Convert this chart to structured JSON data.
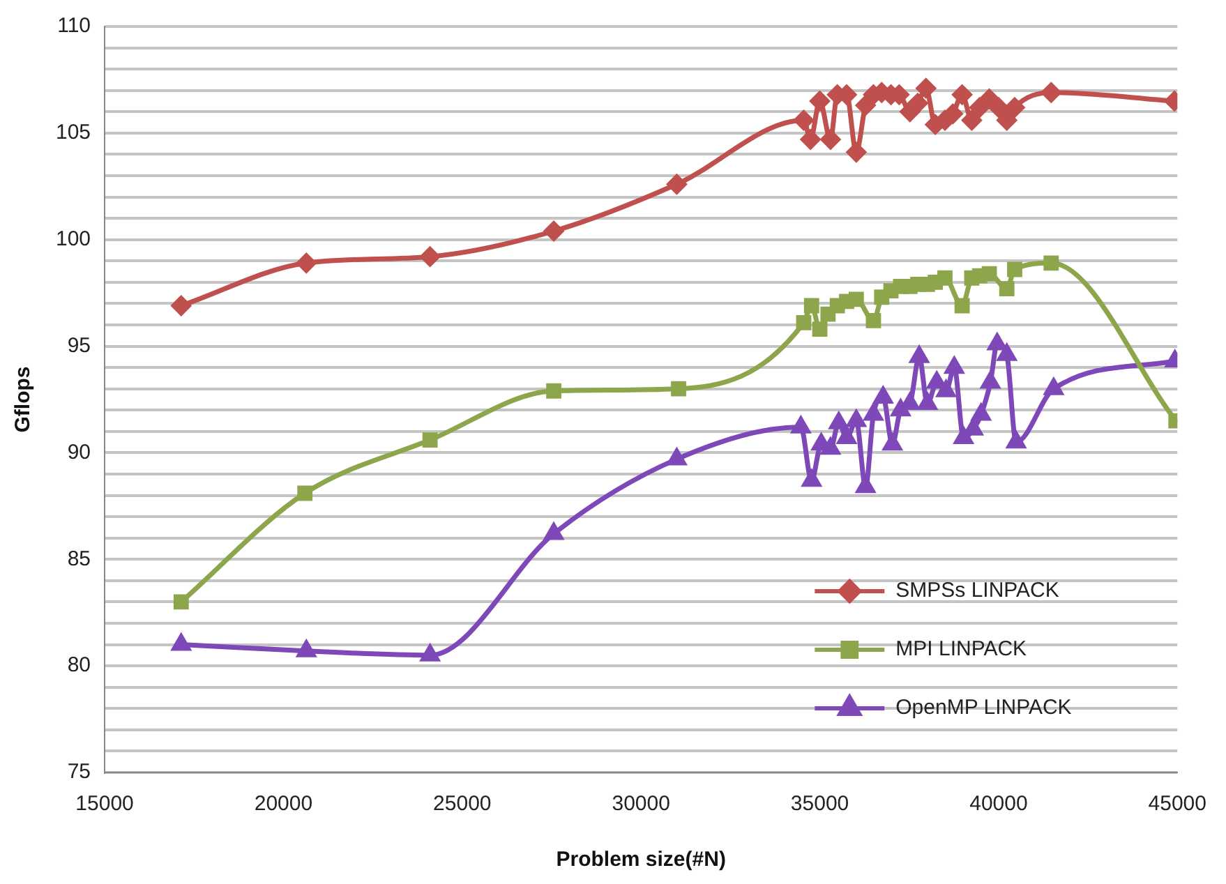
{
  "chart_data": {
    "type": "line",
    "xlabel": "Problem size(#N)",
    "ylabel": "Gflops",
    "xlim": [
      15000,
      45000
    ],
    "xticks": [
      15000,
      20000,
      25000,
      30000,
      35000,
      40000,
      45000
    ],
    "ylim": [
      75,
      110
    ],
    "yticks": [
      75,
      {
        "value": 76,
        "label": null
      },
      {
        "value": 77,
        "label": null
      },
      {
        "value": 78,
        "label": null
      },
      {
        "value": 79,
        "label": null
      },
      80,
      {
        "value": 81,
        "label": null
      },
      {
        "value": 82,
        "label": null
      },
      {
        "value": 83,
        "label": null
      },
      {
        "value": 84,
        "label": null
      },
      85,
      {
        "value": 86,
        "label": null
      },
      {
        "value": 87,
        "label": null
      },
      {
        "value": 88,
        "label": null
      },
      {
        "value": 89,
        "label": null
      },
      90,
      {
        "value": 91,
        "label": null
      },
      {
        "value": 92,
        "label": null
      },
      {
        "value": 93,
        "label": null
      },
      {
        "value": 94,
        "label": null
      },
      95,
      {
        "value": 96,
        "label": null
      },
      {
        "value": 97,
        "label": null
      },
      {
        "value": 98,
        "label": null
      },
      {
        "value": 99,
        "label": null
      },
      100,
      {
        "value": 101,
        "label": null
      },
      {
        "value": 102,
        "label": null
      },
      {
        "value": 103,
        "label": null
      },
      {
        "value": 104,
        "label": null
      },
      105,
      {
        "value": 106,
        "label": null
      },
      {
        "value": 107,
        "label": null
      },
      {
        "value": 108,
        "label": null
      },
      {
        "value": 109,
        "label": null
      },
      110
    ],
    "grid": "y",
    "legend": "bottom right",
    "line_style": "solid",
    "series": [
      {
        "name": "SMPSs LINPACK",
        "color": "#c0504d",
        "marker": "diamond",
        "x": [
          17140,
          20640,
          24100,
          27560,
          31000,
          34550,
          34740,
          35000,
          35300,
          35490,
          35750,
          36020,
          36280,
          36500,
          36730,
          36990,
          37220,
          37520,
          37740,
          37970,
          38230,
          38500,
          38720,
          38980,
          39250,
          39470,
          39740,
          40000,
          40230,
          40450,
          41470,
          44920
        ],
        "values": [
          96.9,
          98.9,
          99.2,
          100.4,
          102.6,
          105.6,
          104.7,
          106.5,
          104.7,
          106.8,
          106.8,
          104.1,
          106.3,
          106.8,
          106.9,
          106.8,
          106.8,
          106.0,
          106.4,
          107.1,
          105.4,
          105.6,
          105.9,
          106.8,
          105.6,
          106.2,
          106.6,
          106.2,
          105.6,
          106.2,
          106.9,
          106.5
        ]
      },
      {
        "name": "MPI LINPACK",
        "color": "#8ea64b",
        "marker": "square",
        "x": [
          17140,
          20600,
          24100,
          27560,
          31050,
          34550,
          34770,
          35000,
          35230,
          35490,
          35750,
          36020,
          36500,
          36730,
          36990,
          37260,
          37520,
          37740,
          38010,
          38230,
          38500,
          38980,
          39250,
          39470,
          39740,
          40230,
          40450,
          41470,
          44960
        ],
        "values": [
          83.0,
          88.1,
          90.6,
          92.9,
          93.0,
          96.1,
          96.9,
          95.8,
          96.5,
          96.9,
          97.1,
          97.2,
          96.2,
          97.3,
          97.6,
          97.8,
          97.8,
          97.9,
          97.9,
          98.0,
          98.2,
          96.9,
          98.2,
          98.3,
          98.4,
          97.7,
          98.6,
          98.9,
          91.5
        ]
      },
      {
        "name": "OpenMP LINPACK",
        "color": "#7e48b8",
        "marker": "triangle",
        "x": [
          17140,
          20640,
          24100,
          27560,
          31000,
          34470,
          34770,
          35040,
          35300,
          35530,
          35750,
          36020,
          36280,
          36500,
          36770,
          37030,
          37260,
          37520,
          37780,
          38010,
          38270,
          38530,
          38760,
          39020,
          39290,
          39510,
          39770,
          39960,
          40230,
          40490,
          41540,
          44930
        ],
        "values": [
          81.0,
          80.7,
          80.5,
          86.2,
          89.7,
          91.2,
          88.7,
          90.4,
          90.2,
          91.4,
          90.7,
          91.5,
          88.4,
          91.8,
          92.6,
          90.4,
          92.0,
          92.3,
          94.5,
          92.3,
          93.3,
          92.9,
          94.0,
          90.7,
          91.1,
          91.8,
          93.3,
          95.1,
          94.6,
          90.5,
          93.0,
          94.3
        ]
      }
    ]
  }
}
